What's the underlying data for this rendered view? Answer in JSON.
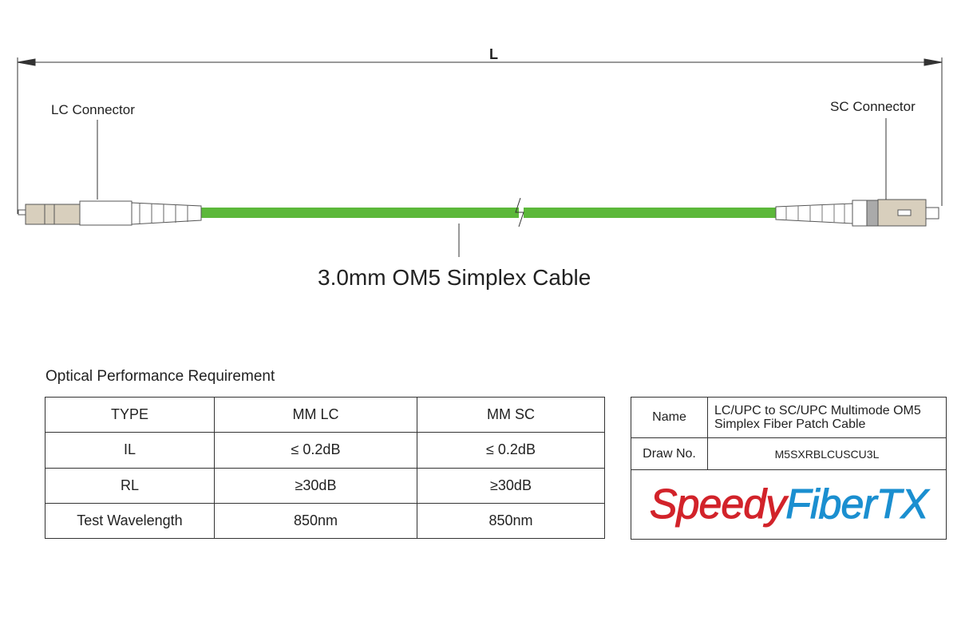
{
  "dimension": {
    "label": "L"
  },
  "left_connector": {
    "label": "LC Connector"
  },
  "right_connector": {
    "label": "SC Connector"
  },
  "cable": {
    "label": "3.0mm OM5 Simplex Cable",
    "color": "#5cb83a"
  },
  "performance": {
    "title": "Optical Performance Requirement",
    "headers": [
      "TYPE",
      "MM LC",
      "MM SC"
    ],
    "rows": [
      [
        "IL",
        "≤ 0.2dB",
        "≤ 0.2dB"
      ],
      [
        "RL",
        "≥30dB",
        "≥30dB"
      ],
      [
        "Test Wavelength",
        "850nm",
        "850nm"
      ]
    ]
  },
  "title_block": {
    "name_label": "Name",
    "name_line1": "LC/UPC to SC/UPC Multimode OM5",
    "name_line2": "Simplex Fiber Patch Cable",
    "draw_label": "Draw No.",
    "draw_no": "M5SXRBLCUSCU3L",
    "logo_part1": "Speedy",
    "logo_part2": "FiberTX",
    "logo_color1": "#d2232a",
    "logo_color2": "#1b8fd0"
  }
}
